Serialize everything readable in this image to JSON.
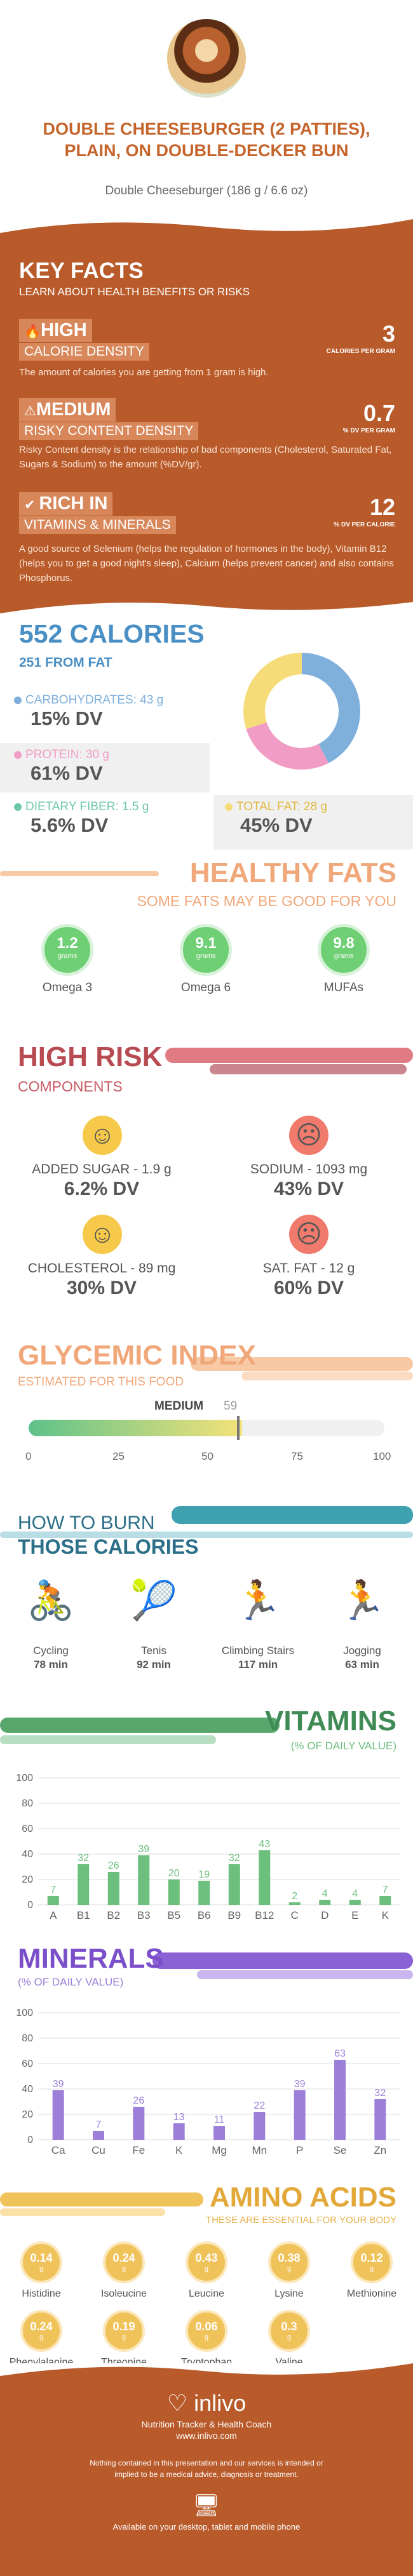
{
  "header": {
    "title": "DOUBLE CHEESEBURGER (2 PATTIES), PLAIN, ON DOUBLE-DECKER BUN",
    "subtitle": "Double Cheeseburger (186 g / 6.6 oz)"
  },
  "key_facts": {
    "heading": "KEY FACTS",
    "subheading": "LEARN ABOUT HEALTH BENEFITS OR RISKS",
    "items": [
      {
        "level": "HIGH",
        "name": "CALORIE DENSITY",
        "value": "3",
        "unit": "CALORIES PER GRAM",
        "desc": "The amount of calories you are getting from 1 gram is high.",
        "icon": "fire-icon"
      },
      {
        "level": "MEDIUM",
        "name": "RISKY CONTENT DENSITY",
        "value": "0.7",
        "unit": "% DV PER GRAM",
        "desc": "Risky Content density is the relationship of bad components (Cholesterol, Saturated Fat, Sugars & Sodium) to the amount (%DV/gr).",
        "icon": "warning-icon"
      },
      {
        "level": "RICH IN",
        "name": "VITAMINS & MINERALS",
        "value": "12",
        "unit": "% DV PER CALORIE",
        "desc": "A good source of Selenium (helps the regulation of hormones in the body), Vitamin B12 (helps you to get a good night's sleep), Calcium (helps prevent cancer) and also contains Phosphorus.",
        "icon": "check-icon"
      }
    ]
  },
  "calories": {
    "heading": "552 CALORIES",
    "from_fat": "251 FROM FAT",
    "carbs": {
      "label": "CARBOHYDRATES: 43 g",
      "dv": "15% DV",
      "color": "#7fb0dc"
    },
    "protein": {
      "label": "PROTEIN: 30 g",
      "dv": "61% DV",
      "color": "#f09cc4"
    },
    "fiber": {
      "label": "DIETARY FIBER: 1.5 g",
      "dv": "5.6% DV",
      "color": "#6cc8a8"
    },
    "fat": {
      "label": "TOTAL FAT: 28 g",
      "dv": "45% DV",
      "color": "#f5dc78"
    }
  },
  "healthy_fats": {
    "heading": "HEALTHY FATS",
    "subheading": "SOME FATS MAY BE GOOD FOR YOU",
    "unit": "grams",
    "items": [
      {
        "value": "1.2",
        "name": "Omega 3"
      },
      {
        "value": "9.1",
        "name": "Omega 6"
      },
      {
        "value": "9.8",
        "name": "MUFAs"
      }
    ]
  },
  "high_risk": {
    "heading": "HIGH RISK",
    "subheading": "COMPONENTS",
    "items": [
      {
        "label": "ADDED SUGAR - 1.9 g",
        "dv": "6.2% DV",
        "mood": "happy"
      },
      {
        "label": "SODIUM - 1093 mg",
        "dv": "43% DV",
        "mood": "sad"
      },
      {
        "label": "CHOLESTEROL - 89 mg",
        "dv": "30% DV",
        "mood": "happy"
      },
      {
        "label": "SAT. FAT - 12 g",
        "dv": "60% DV",
        "mood": "sad"
      }
    ]
  },
  "glycemic": {
    "heading": "GLYCEMIC INDEX",
    "subheading": "ESTIMATED FOR THIS FOOD",
    "level": "MEDIUM",
    "value": 59,
    "value_label": "59",
    "ticks": [
      "0",
      "25",
      "50",
      "75",
      "100"
    ]
  },
  "burn": {
    "heading1": "HOW TO BURN",
    "heading2": "THOSE CALORIES",
    "items": [
      {
        "name": "Cycling",
        "time": "78 min",
        "icon": "cycling-icon"
      },
      {
        "name": "Tenis",
        "time": "92 min",
        "icon": "tennis-icon"
      },
      {
        "name": "Climbing Stairs",
        "time": "117 min",
        "icon": "stairs-icon"
      },
      {
        "name": "Jogging",
        "time": "63 min",
        "icon": "jogging-icon"
      }
    ]
  },
  "vitamins": {
    "heading": "VITAMINS",
    "subheading": "(% OF DAILY VALUE)",
    "chart_data": {
      "type": "bar",
      "categories": [
        "A",
        "B1",
        "B2",
        "B3",
        "B5",
        "B6",
        "B9",
        "B12",
        "C",
        "D",
        "E",
        "K"
      ],
      "values": [
        7,
        32,
        26,
        39,
        20,
        19,
        32,
        43,
        2,
        4,
        4,
        7
      ],
      "ylim": [
        0,
        100
      ],
      "yticks": [
        "0",
        "20",
        "40",
        "60",
        "80",
        "100"
      ],
      "color": "#6cbf7c"
    }
  },
  "minerals": {
    "heading": "MINERALS",
    "subheading": "(% OF DAILY VALUE)",
    "chart_data": {
      "type": "bar",
      "categories": [
        "Ca",
        "Cu",
        "Fe",
        "K",
        "Mg",
        "Mn",
        "P",
        "Se",
        "Zn"
      ],
      "values": [
        39,
        7,
        26,
        13,
        11,
        22,
        39,
        63,
        32
      ],
      "ylim": [
        0,
        100
      ],
      "yticks": [
        "0",
        "20",
        "40",
        "60",
        "80",
        "100"
      ],
      "color": "#9b7fd9"
    }
  },
  "amino": {
    "heading": "AMINO ACIDS",
    "subheading": "THESE ARE ESSENTIAL FOR YOUR BODY",
    "unit": "g",
    "items": [
      {
        "value": "0.14",
        "name": "Histidine"
      },
      {
        "value": "0.24",
        "name": "Isoleucine"
      },
      {
        "value": "0.43",
        "name": "Leucine"
      },
      {
        "value": "0.38",
        "name": "Lysine"
      },
      {
        "value": "0.12",
        "name": "Methionine"
      },
      {
        "value": "0.24",
        "name": "Phenylalanine"
      },
      {
        "value": "0.19",
        "name": "Threonine"
      },
      {
        "value": "0.06",
        "name": "Tryptophan"
      },
      {
        "value": "0.3",
        "name": "Valine"
      }
    ]
  },
  "footer": {
    "brand": "inlivo",
    "tagline": "Nutrition Tracker & Health Coach",
    "url": "www.inlivo.com",
    "disclaimer": "Nothing contained in this presentation and our services is intended or implied to be a medical advice, diagnosis or treatment.",
    "platforms": "Available on your desktop, tablet and mobile phone"
  }
}
